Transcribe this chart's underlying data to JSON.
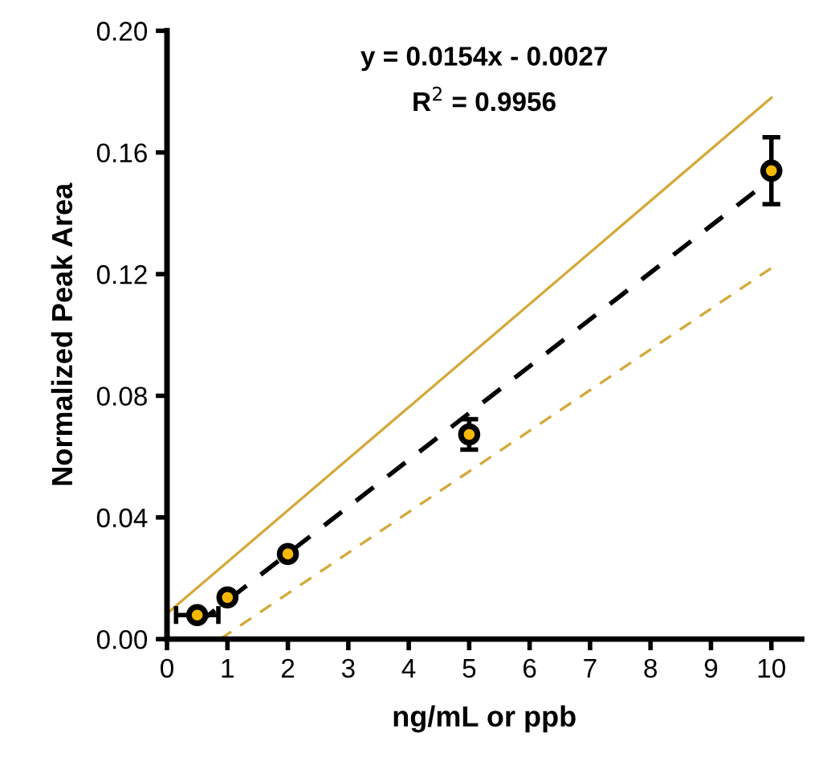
{
  "chart_data": {
    "type": "scatter",
    "xlabel": "ng/mL or ppb",
    "ylabel": "Normalized Peak Area",
    "annotations": [
      "y = 0.0154x - 0.0027",
      "R$^{2}$ = 0.9956"
    ],
    "xlim": [
      0,
      10.5
    ],
    "xticks": [
      0,
      1,
      2,
      3,
      4,
      5,
      6,
      7,
      8,
      9,
      10
    ],
    "ylim": [
      0,
      0.2
    ],
    "yticks": [
      {
        "value": 0,
        "label": "0.00"
      },
      {
        "value": 0.04,
        "label": "0.04"
      },
      {
        "value": 0.08,
        "label": "0.08"
      },
      {
        "value": 0.12,
        "label": "0.12"
      },
      {
        "value": 0.16,
        "label": "0.16"
      },
      {
        "value": 0.2,
        "label": "0.20"
      }
    ],
    "grid": false,
    "legend": false,
    "series": [
      {
        "type": "line",
        "x": [
          0.5,
          10
        ],
        "values": [
          0.005,
          0.1513
        ],
        "color": "#000000",
        "line_style": "dashed",
        "marker": "none"
      },
      {
        "type": "line",
        "x": [
          0,
          10
        ],
        "values": [
          0.0084,
          0.178
        ],
        "color": "#d4a93a",
        "line_style": "solid",
        "marker": "none"
      },
      {
        "type": "line",
        "x": [
          0.88,
          10
        ],
        "values": [
          0,
          0.122
        ],
        "color": "#d4a93a",
        "line_style": "dashed",
        "marker": "none"
      },
      {
        "x": [
          0.5,
          1,
          2,
          5,
          10
        ],
        "values": [
          0.0079,
          0.0137,
          0.028,
          0.0673,
          0.154
        ],
        "color": "#f5b800",
        "marker": "circle",
        "errors": [
          0.001,
          0.001,
          0.001,
          0.005,
          0.011
        ],
        "xerrors": [
          0.35,
          null,
          null,
          null,
          null
        ]
      }
    ]
  }
}
